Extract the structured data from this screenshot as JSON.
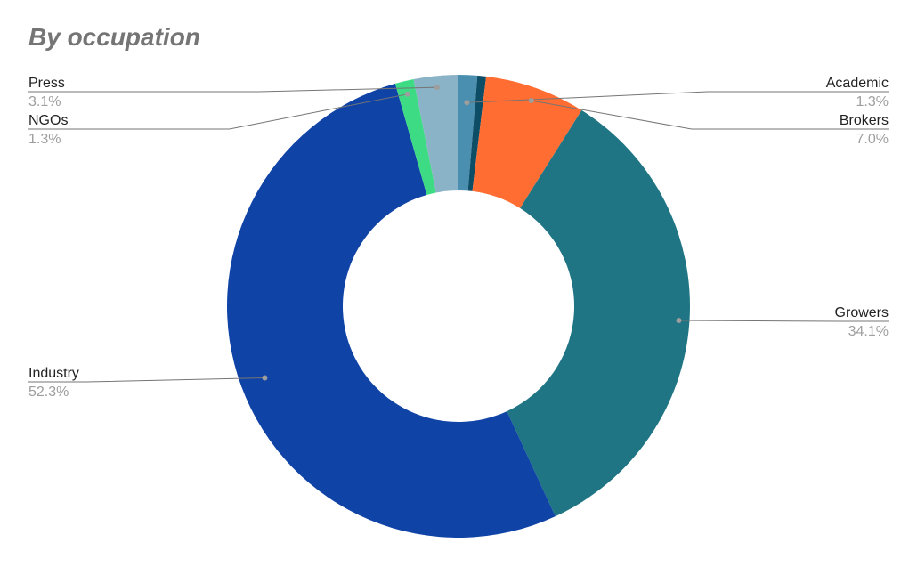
{
  "title": "By occupation",
  "chart_data": {
    "type": "pie",
    "donut": true,
    "title": "By occupation",
    "start_angle_deg": 0,
    "direction": "clockwise",
    "slices": [
      {
        "label": "Academic",
        "value_label": "1.3%",
        "value": 1.3,
        "color": "#4a8fb0",
        "side": "right"
      },
      {
        "label": "",
        "value_label": "",
        "value": 0.6,
        "color": "#0d4d66",
        "side": "none"
      },
      {
        "label": "Brokers",
        "value_label": "7.0%",
        "value": 7.0,
        "color": "#ff6d33",
        "side": "right"
      },
      {
        "label": "Growers",
        "value_label": "34.1%",
        "value": 34.1,
        "color": "#1f7584",
        "side": "right"
      },
      {
        "label": "Industry",
        "value_label": "52.3%",
        "value": 52.3,
        "color": "#1043a6",
        "side": "left"
      },
      {
        "label": "NGOs",
        "value_label": "1.3%",
        "value": 1.3,
        "color": "#3ddc84",
        "side": "left"
      },
      {
        "label": "Press",
        "value_label": "3.1%",
        "value": 3.1,
        "color": "#8bb3c7",
        "side": "left"
      }
    ]
  }
}
